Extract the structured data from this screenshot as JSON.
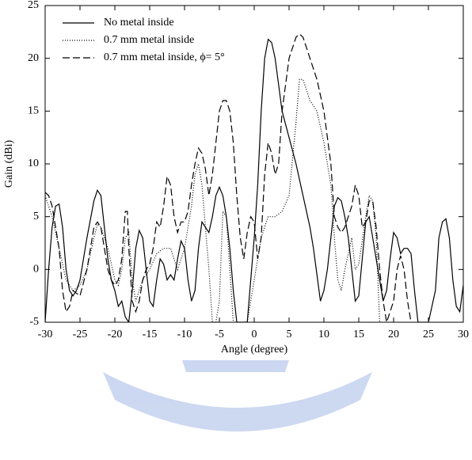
{
  "chart_data": {
    "type": "line",
    "xlabel": "Angle (degree)",
    "ylabel": "Gain (dBi)",
    "xlim": [
      -30,
      30
    ],
    "xticks": [
      -30,
      -25,
      -20,
      -15,
      -10,
      -5,
      0,
      5,
      10,
      15,
      20,
      25,
      30
    ],
    "ylim": [
      -5,
      25
    ],
    "yticks": [
      -5,
      0,
      5,
      10,
      15,
      20,
      25
    ],
    "legend": "upper left",
    "series": [
      {
        "name": "No metal inside",
        "color": "#000000",
        "linestyle": "solid",
        "x": [
          -30,
          -29.5,
          -29,
          -28.5,
          -28,
          -27.5,
          -27,
          -26.5,
          -26,
          -25.5,
          -25,
          -24.5,
          -24,
          -23,
          -22.5,
          -22,
          -21.5,
          -21,
          -20.5,
          -20,
          -19.5,
          -19,
          -18.5,
          -18,
          -17.5,
          -17,
          -16.5,
          -16,
          -15.5,
          -15,
          -14.5,
          -14,
          -13.5,
          -13,
          -12.5,
          -12,
          -11.5,
          -11,
          -10.5,
          -10,
          -9.5,
          -9,
          -8.5,
          -8,
          -7.5,
          -7,
          -6.5,
          -6,
          -5.5,
          -5,
          -4.5,
          -4,
          -3.5,
          -3,
          -2.5,
          -1,
          -0.5,
          0,
          0.5,
          1,
          1.5,
          2,
          2.5,
          3,
          4,
          5,
          6,
          7,
          8,
          8.5,
          9,
          9.5,
          10,
          10.5,
          11,
          11.5,
          12,
          12.5,
          13,
          13.5,
          14,
          14.5,
          15,
          15.5,
          16,
          16.5,
          17,
          17.5,
          18,
          18.5,
          19,
          19.5,
          20,
          20.5,
          21,
          21.5,
          22,
          22.5,
          23,
          23.5,
          25,
          26,
          26.5,
          27,
          27.5,
          28,
          28.5,
          29,
          29.5,
          30
        ],
        "values": [
          -5,
          0,
          4,
          6,
          6.2,
          4,
          0,
          -2,
          -2.5,
          -2,
          -1,
          1,
          3,
          6.5,
          7.5,
          7,
          4,
          1,
          -1,
          -2,
          -3.5,
          -3,
          -4.5,
          -5,
          -2,
          2,
          3.7,
          3,
          0,
          -3,
          -3.5,
          -1,
          1,
          0.5,
          -1,
          -0.5,
          -1,
          1,
          2.7,
          2,
          -1,
          -3,
          -2,
          2,
          4.5,
          4,
          3.5,
          5,
          7,
          7.8,
          7,
          5,
          2,
          -2,
          -5,
          -5,
          -1,
          3,
          8,
          15,
          20,
          21.8,
          21.5,
          20,
          15,
          12.5,
          10,
          7,
          4,
          2,
          -0.5,
          -3,
          -2,
          0,
          3,
          6,
          6.8,
          6.5,
          5,
          3,
          0,
          -3,
          -2.5,
          1,
          4.5,
          5,
          3,
          1,
          -1,
          -3,
          -2,
          1,
          3.5,
          3,
          1.5,
          2,
          2,
          1.5,
          -2,
          -5,
          -5,
          -2,
          3,
          4.5,
          4.8,
          3,
          -1,
          -3.5,
          -4,
          -1.5
        ]
      },
      {
        "name": "0.7 mm metal inside",
        "color": "#000000",
        "linestyle": "dotted",
        "x": [
          -30,
          -29,
          -28,
          -27,
          -26,
          -25,
          -24,
          -23,
          -22.5,
          -22,
          -21,
          -20,
          -19.5,
          -19,
          -18.5,
          -18,
          -17.5,
          -17,
          -16,
          -15,
          -14,
          -13,
          -12,
          -11,
          -10,
          -9,
          -8.5,
          -8,
          -7.5,
          -7,
          -6.5,
          -6,
          -5.5,
          -5,
          -4.5,
          -4,
          -3.5,
          -3,
          -1,
          -0.5,
          0,
          0.5,
          1,
          2,
          3,
          4,
          5,
          6,
          6.5,
          7,
          8,
          9,
          10,
          11,
          11.5,
          12,
          12.5,
          13,
          14,
          14.5,
          15,
          16,
          16.5,
          17,
          17.5,
          18
        ],
        "values": [
          7,
          5,
          2,
          -1,
          -2,
          -1.5,
          0,
          3,
          4.3,
          4,
          2,
          -1,
          -1.5,
          0,
          3,
          3.5,
          -1,
          -3,
          -1,
          0,
          1.5,
          2,
          2,
          0,
          2,
          6,
          9,
          10,
          8,
          4,
          0,
          -5,
          -5,
          -3,
          5.5,
          5,
          0,
          -5,
          -5,
          -3,
          -1,
          1,
          3,
          5,
          5,
          5.5,
          7,
          14,
          18,
          18,
          16,
          15,
          12,
          8,
          3,
          -1,
          -2,
          0,
          3,
          0,
          0.5,
          5,
          7,
          6.5,
          3,
          -5
        ]
      },
      {
        "name": "0.7 mm metal inside, ϕ= 5°",
        "color": "#000000",
        "linestyle": "dashed",
        "x": [
          -30,
          -29.5,
          -29,
          -28.5,
          -28,
          -27.5,
          -27,
          -26.5,
          -26,
          -25,
          -24,
          -23,
          -22.5,
          -22,
          -21.5,
          -21,
          -20.5,
          -20,
          -19.5,
          -19,
          -18.5,
          -18.2,
          -18,
          -17.5,
          -17,
          -16.5,
          -16,
          -15.5,
          -15,
          -14.5,
          -14,
          -13.5,
          -13,
          -12.5,
          -12,
          -11.5,
          -11,
          -10.5,
          -10,
          -9.5,
          -9,
          -8.5,
          -8,
          -7.5,
          -7,
          -6.5,
          -6,
          -5.5,
          -5,
          -4.5,
          -4,
          -3.5,
          -3,
          -2.5,
          -2,
          -1.5,
          -1,
          -0.5,
          0,
          0.5,
          1,
          1.5,
          2,
          2.5,
          3,
          3.5,
          4,
          5,
          6,
          6.5,
          7,
          8,
          9,
          10,
          11,
          11.5,
          12,
          12.5,
          13,
          14,
          14.5,
          15,
          15.5,
          16,
          16.5,
          17,
          17.5,
          18,
          18.5,
          19,
          20,
          20.5,
          21,
          21.5,
          22,
          22.5
        ],
        "values": [
          7.3,
          7,
          6,
          4,
          2,
          -2,
          -4,
          -3.5,
          -2,
          -2.5,
          0,
          4,
          4.5,
          4,
          2,
          0,
          -1,
          -1.5,
          -1,
          1,
          5.5,
          5.5,
          2,
          -3,
          -4,
          -3,
          -1,
          0,
          0.5,
          2,
          4.5,
          4,
          6,
          8.8,
          8,
          5,
          3.5,
          4.5,
          4.5,
          5.5,
          8,
          10,
          11.5,
          11,
          9.5,
          7,
          9,
          12,
          15,
          16,
          16,
          15,
          12,
          7,
          3,
          1,
          3.5,
          5,
          4.5,
          1,
          3,
          9,
          12,
          11,
          9,
          10,
          15,
          20,
          22,
          22.3,
          22,
          20,
          18,
          15,
          10,
          5,
          4,
          3.5,
          4,
          6,
          8,
          7,
          4,
          4.5,
          6.5,
          6.5,
          4,
          0,
          -3,
          -5,
          -3,
          0,
          1.3,
          0,
          -3,
          -5
        ]
      }
    ]
  }
}
